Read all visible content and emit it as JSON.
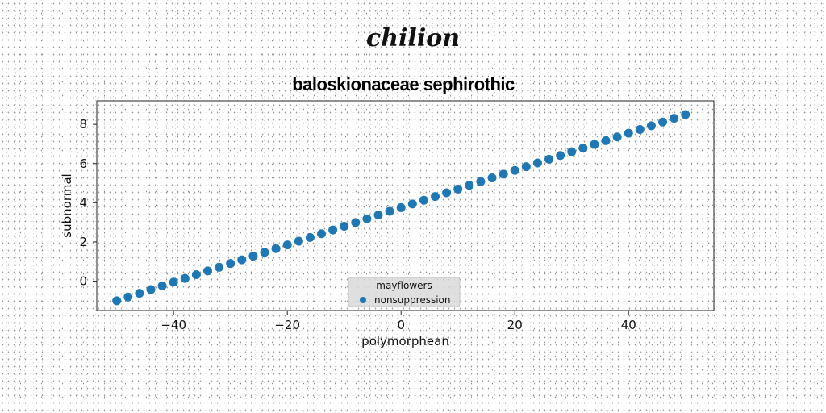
{
  "figure": {
    "title": "chilion"
  },
  "chart_data": {
    "type": "scatter",
    "title": "baloskionaceae sephirothic",
    "xlabel": "polymorphean",
    "ylabel": "subnormal",
    "xlim": [
      -53.5,
      55
    ],
    "ylim": [
      -1.5,
      9.2
    ],
    "xticks": [
      -40,
      -20,
      0,
      20,
      40
    ],
    "yticks": [
      0,
      2,
      4,
      6,
      8
    ],
    "xtick_labels": [
      "−40",
      "−20",
      "0",
      "20",
      "40"
    ],
    "ytick_labels": [
      "0",
      "2",
      "4",
      "6",
      "8"
    ],
    "grid": false,
    "legend": {
      "title": "mayflowers",
      "placement": "lower center",
      "entries": [
        "nonsuppression"
      ]
    },
    "series": [
      {
        "name": "nonsuppression",
        "color": "#1f77b4",
        "x": [
          -50,
          -48,
          -46,
          -44,
          -42,
          -40,
          -38,
          -36,
          -34,
          -32,
          -30,
          -28,
          -26,
          -24,
          -22,
          -20,
          -18,
          -16,
          -14,
          -12,
          -10,
          -8,
          -6,
          -4,
          -2,
          0,
          2,
          4,
          6,
          8,
          10,
          12,
          14,
          16,
          18,
          20,
          22,
          24,
          26,
          28,
          30,
          32,
          34,
          36,
          38,
          40,
          42,
          44,
          46,
          48,
          50
        ],
        "y": [
          -1.0,
          -0.81,
          -0.62,
          -0.43,
          -0.24,
          -0.05,
          0.14,
          0.33,
          0.52,
          0.71,
          0.9,
          1.09,
          1.28,
          1.47,
          1.66,
          1.85,
          2.04,
          2.23,
          2.42,
          2.61,
          2.8,
          2.99,
          3.18,
          3.37,
          3.56,
          3.75,
          3.94,
          4.13,
          4.32,
          4.51,
          4.7,
          4.89,
          5.08,
          5.27,
          5.46,
          5.65,
          5.84,
          6.03,
          6.22,
          6.41,
          6.6,
          6.79,
          6.98,
          7.17,
          7.36,
          7.55,
          7.74,
          7.93,
          8.12,
          8.31,
          8.5
        ]
      }
    ]
  }
}
